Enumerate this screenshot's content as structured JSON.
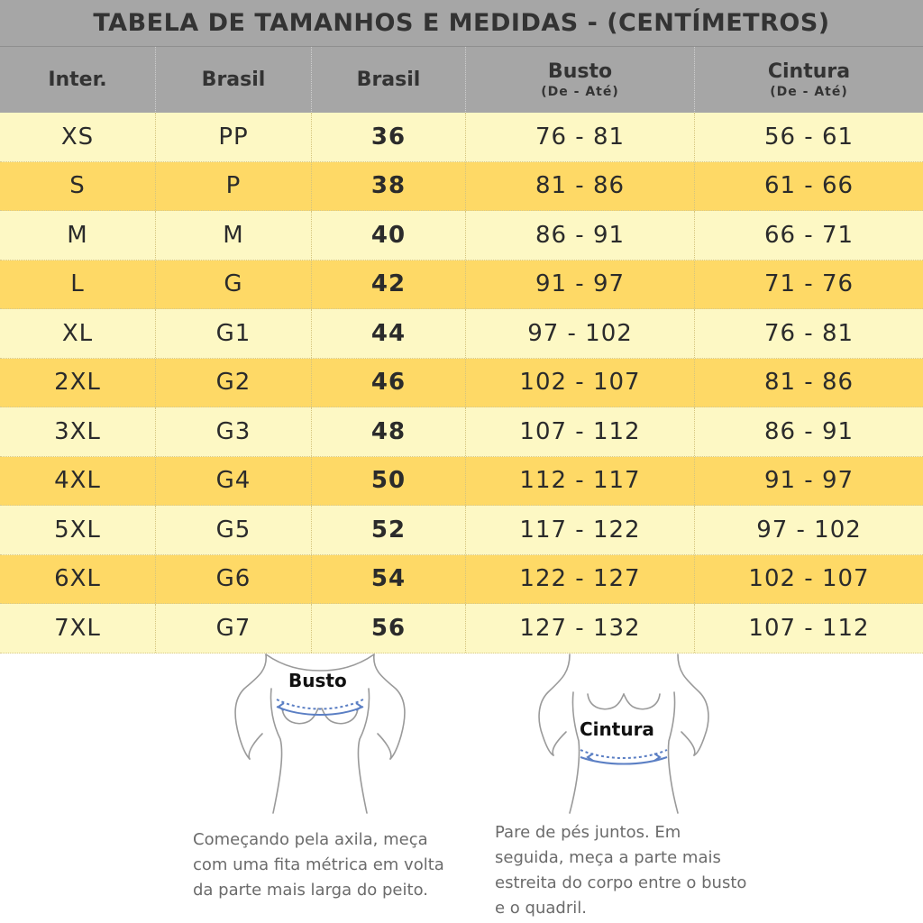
{
  "title": "TABELA DE TAMANHOS E MEDIDAS - (CENTÍMETROS)",
  "columns": [
    {
      "label": "Inter.",
      "sub": ""
    },
    {
      "label": "Brasil",
      "sub": ""
    },
    {
      "label": "Brasil",
      "sub": ""
    },
    {
      "label": "Busto",
      "sub": "(De - Até)"
    },
    {
      "label": "Cintura",
      "sub": "(De - Até)"
    }
  ],
  "rows": [
    [
      "XS",
      "PP",
      "36",
      "76 - 81",
      "56 - 61"
    ],
    [
      "S",
      "P",
      "38",
      "81 - 86",
      "61 - 66"
    ],
    [
      "M",
      "M",
      "40",
      "86 - 91",
      "66 - 71"
    ],
    [
      "L",
      "G",
      "42",
      "91 - 97",
      "71 - 76"
    ],
    [
      "XL",
      "G1",
      "44",
      "97 - 102",
      "76 - 81"
    ],
    [
      "2XL",
      "G2",
      "46",
      "102 - 107",
      "81 - 86"
    ],
    [
      "3XL",
      "G3",
      "48",
      "107 - 112",
      "86 - 91"
    ],
    [
      "4XL",
      "G4",
      "50",
      "112 - 117",
      "91 - 97"
    ],
    [
      "5XL",
      "G5",
      "52",
      "117 - 122",
      "97 - 102"
    ],
    [
      "6XL",
      "G6",
      "54",
      "122 - 127",
      "102 - 107"
    ],
    [
      "7XL",
      "G7",
      "56",
      "127 - 132",
      "107 - 112"
    ]
  ],
  "figures": {
    "bust": {
      "label": "Busto",
      "note_lines": [
        "Começando pela axila, meça",
        "com uma fita métrica em volta",
        "da parte mais larga do peito."
      ]
    },
    "waist": {
      "label": "Cintura",
      "note_lines": [
        "Pare de pés juntos. Em",
        "seguida, meça a parte mais",
        "estreita do corpo entre o busto",
        "e o quadril."
      ]
    }
  },
  "colors": {
    "header_bg": "#a6a6a6",
    "row_light": "#fdf8c4",
    "row_dark": "#fed966",
    "measure_line": "#5b7fc4"
  }
}
